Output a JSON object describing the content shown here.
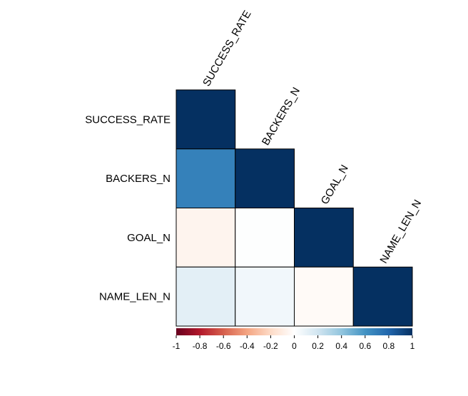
{
  "chart_data": {
    "type": "heatmap",
    "subtype": "correlation-lower-triangle",
    "variables": [
      "SUCCESS_RATE",
      "BACKERS_N",
      "GOAL_N",
      "NAME_LEN_N"
    ],
    "matrix": [
      [
        1.0,
        null,
        null,
        null
      ],
      [
        0.68,
        1.0,
        null,
        null
      ],
      [
        -0.06,
        0.01,
        1.0,
        null
      ],
      [
        0.12,
        0.06,
        -0.03,
        1.0
      ]
    ],
    "colorbar": {
      "range": [
        -1,
        1
      ],
      "ticks": [
        "-1",
        "-0.8",
        "-0.6",
        "-0.4",
        "-0.2",
        "0",
        "0.2",
        "0.4",
        "0.6",
        "0.8",
        "1"
      ],
      "colors": [
        "#67001F",
        "#B2182B",
        "#D6604D",
        "#F4A582",
        "#FDDBC7",
        "#FFFFFF",
        "#D1E5F0",
        "#92C5DE",
        "#4393C3",
        "#2166AC",
        "#053061"
      ],
      "placement": "bottom"
    }
  }
}
